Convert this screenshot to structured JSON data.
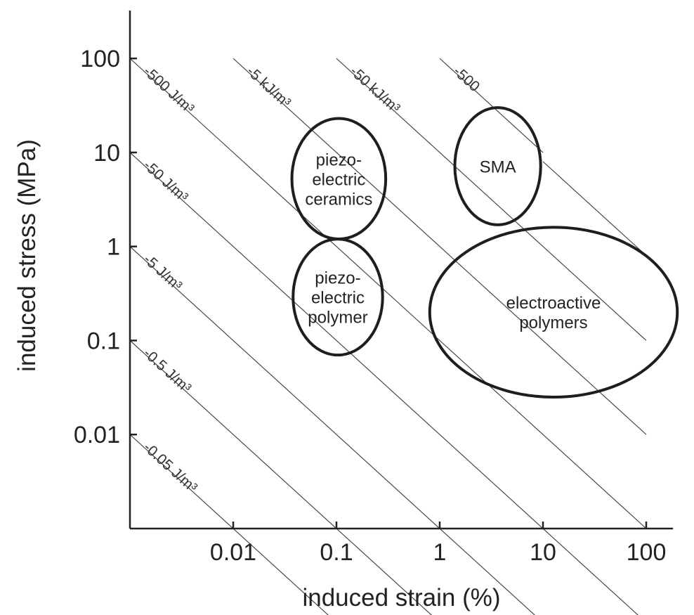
{
  "chart_data": {
    "type": "scatter",
    "title": "",
    "xlabel": "induced strain (%)",
    "ylabel": "induced stress (MPa)",
    "x_scale": "log",
    "y_scale": "log",
    "xlim": [
      0.001,
      300
    ],
    "ylim": [
      0.001,
      500
    ],
    "x_ticks": [
      0.01,
      0.1,
      1,
      10,
      100
    ],
    "x_tick_labels": [
      "0.01",
      "0.1",
      "1",
      "10",
      "100"
    ],
    "y_ticks": [
      0.01,
      0.1,
      1,
      10,
      100
    ],
    "y_tick_labels": [
      "0.01",
      "0.1",
      "1",
      "10",
      "100"
    ],
    "grid": false,
    "iso_energy_lines": [
      {
        "label": "-0.05 J/m³",
        "x_range": [
          0.001,
          0.1
        ]
      },
      {
        "label": "-0.5 J/m³",
        "x_range": [
          0.001,
          1
        ]
      },
      {
        "label": "-5 J/m³",
        "x_range": [
          0.001,
          10
        ]
      },
      {
        "label": "-50 J/m³",
        "x_range": [
          0.001,
          100
        ]
      },
      {
        "label": "-500 J/m³",
        "x_range": [
          0.001,
          100
        ]
      },
      {
        "label": "-5 kJ/m³",
        "x_range": [
          0.01,
          100
        ]
      },
      {
        "label": "-50 kJ/m³",
        "x_range": [
          0.1,
          100
        ]
      },
      {
        "label": "-500",
        "x_range": [
          1,
          10
        ]
      },
      {
        "label": "",
        "x_range": [
          10,
          100
        ]
      }
    ],
    "regions": [
      {
        "lines": [
          "piezo-",
          "electric",
          "ceramics"
        ],
        "x_range": [
          0.037,
          0.3
        ],
        "y_range": [
          1.2,
          23
        ]
      },
      {
        "lines": [
          "piezo-",
          "electric",
          "polymer"
        ],
        "x_range": [
          0.038,
          0.28
        ],
        "y_range": [
          0.07,
          1.2
        ]
      },
      {
        "lines": [
          "SMA"
        ],
        "x_range": [
          1.4,
          9.5
        ],
        "y_range": [
          1.7,
          30
        ]
      },
      {
        "lines": [
          "electroactive",
          "polymers"
        ],
        "x_range": [
          0.8,
          200
        ],
        "y_range": [
          0.025,
          1.6
        ]
      }
    ]
  }
}
